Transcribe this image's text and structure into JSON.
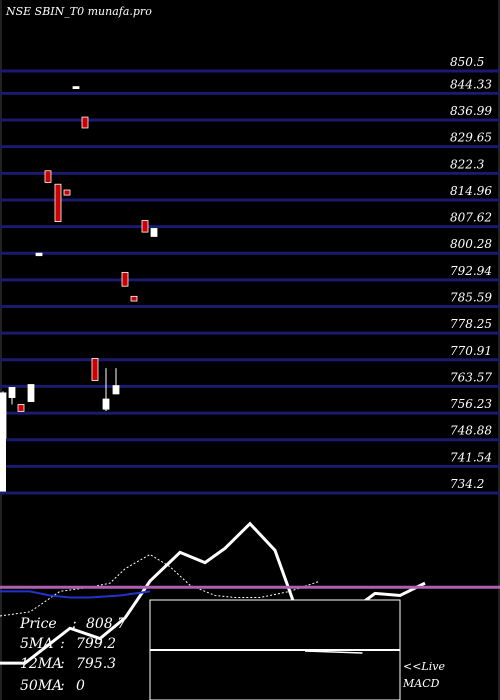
{
  "header": {
    "title": "NSE SBIN_T0  munafa.pro"
  },
  "price_axis": {
    "ticks": [
      "850.5",
      "844.33",
      "836.99",
      "829.65",
      "822.3",
      "814.96",
      "807.62",
      "800.28",
      "792.94",
      "785.59",
      "778.25",
      "770.91",
      "763.57",
      "756.23",
      "748.88",
      "741.54",
      "734.2"
    ]
  },
  "info": {
    "price_label": "Price",
    "price_value": "808.7",
    "ma5_label": "5MA",
    "ma5_value": "799.2",
    "ma12_label": "12MA",
    "ma12_value": "795.3",
    "ma50_label": "50MA",
    "ma50_value": "0"
  },
  "macd": {
    "label_line1": "<<Live",
    "label_line2": "MACD"
  },
  "colors": {
    "background": "#000000",
    "gridline": "#1a1a6e",
    "axis_text": "#ffffff",
    "bull_candle": "#ffffff",
    "bear_candle": "#cc0000",
    "bear_outline": "#ffffff",
    "signal_line": "#b060b0",
    "line_white": "#ffffff",
    "line_blue": "#2233cc",
    "line_dotted": "#ffffff"
  },
  "chart_data": [
    {
      "type": "candlestick",
      "title": "NSE SBIN_T0  munafa.pro",
      "ylim": [
        731,
        851
      ],
      "yticks": [
        850.5,
        844.33,
        836.99,
        829.65,
        822.3,
        814.96,
        807.62,
        800.28,
        792.94,
        785.59,
        778.25,
        770.91,
        763.57,
        756.23,
        748.88,
        741.54,
        734.2
      ],
      "candles": [
        {
          "open": 761.8,
          "close": 749.3,
          "high": 762.2,
          "low": 748.4,
          "dir": "up"
        },
        {
          "open": 763.3,
          "close": 760.5,
          "high": 763.3,
          "low": 758.6,
          "dir": "up"
        },
        {
          "open": 758.6,
          "close": 756.7,
          "high": 758.6,
          "low": 756.7,
          "dir": "down"
        },
        {
          "open": 764.1,
          "close": 759.4,
          "high": 764.1,
          "low": 759.4,
          "dir": "up"
        },
        {
          "open": 800.3,
          "close": 799.6,
          "high": 800.3,
          "low": 799.6,
          "dir": "up"
        },
        {
          "open": 823.0,
          "close": 819.8,
          "high": 823.0,
          "low": 819.8,
          "dir": "down"
        },
        {
          "open": 819.3,
          "close": 809.0,
          "high": 819.3,
          "low": 809.0,
          "dir": "down"
        },
        {
          "open": 817.7,
          "close": 816.3,
          "high": 817.7,
          "low": 816.3,
          "dir": "down"
        },
        {
          "open": 846.2,
          "close": 846.2,
          "high": 846.2,
          "low": 846.2,
          "dir": "up"
        },
        {
          "open": 837.8,
          "close": 834.8,
          "high": 837.8,
          "low": 834.8,
          "dir": "down"
        },
        {
          "open": 771.3,
          "close": 765.2,
          "high": 771.3,
          "low": 765.2,
          "dir": "down"
        },
        {
          "open": 760.1,
          "close": 757.3,
          "high": 768.6,
          "low": 756.8,
          "dir": "up"
        },
        {
          "open": 763.8,
          "close": 761.5,
          "high": 768.6,
          "low": 761.5,
          "dir": "up"
        },
        {
          "open": 795.0,
          "close": 791.2,
          "high": 795.0,
          "low": 791.2,
          "dir": "down"
        },
        {
          "open": 788.4,
          "close": 787.1,
          "high": 788.4,
          "low": 787.1,
          "dir": "down"
        },
        {
          "open": 809.3,
          "close": 806.1,
          "high": 809.3,
          "low": 806.1,
          "dir": "down"
        },
        {
          "open": 807.1,
          "close": 804.9,
          "high": 807.1,
          "low": 804.9,
          "dir": "up"
        }
      ]
    },
    {
      "type": "line",
      "title": "MACD",
      "ylim": [
        0,
        1
      ],
      "series": [
        {
          "style": "white",
          "x": [
            0,
            0.05,
            0.14,
            0.2,
            0.25,
            0.3,
            0.36,
            0.41,
            0.45,
            0.5,
            0.55,
            0.6,
            0.65,
            0.7,
            0.75,
            0.8,
            0.85
          ],
          "y": [
            0.18,
            0.18,
            0.35,
            0.3,
            0.4,
            0.58,
            0.72,
            0.67,
            0.74,
            0.86,
            0.73,
            0.39,
            0.37,
            0.43,
            0.52,
            0.51,
            0.57
          ]
        },
        {
          "style": "dotted",
          "x": [
            0,
            0.06,
            0.12,
            0.18,
            0.22,
            0.25,
            0.3,
            0.34,
            0.38,
            0.43,
            0.47,
            0.52,
            0.58,
            0.64
          ],
          "y": [
            0.41,
            0.43,
            0.53,
            0.55,
            0.57,
            0.64,
            0.71,
            0.65,
            0.56,
            0.51,
            0.5,
            0.5,
            0.53,
            0.58
          ]
        },
        {
          "style": "blue",
          "x": [
            0,
            0.06,
            0.1,
            0.14,
            0.18,
            0.24,
            0.3
          ],
          "y": [
            0.53,
            0.53,
            0.51,
            0.5,
            0.5,
            0.51,
            0.53
          ]
        },
        {
          "style": "signal",
          "x": [
            0,
            1
          ],
          "y": [
            0.55,
            0.55
          ]
        }
      ],
      "inset": {
        "lines": [
          {
            "x": [
              0,
              1
            ],
            "y": [
              0.5,
              0.5
            ]
          },
          {
            "x": [
              0.62,
              0.85
            ],
            "y": [
              0.49,
              0.47
            ]
          }
        ]
      }
    }
  ]
}
